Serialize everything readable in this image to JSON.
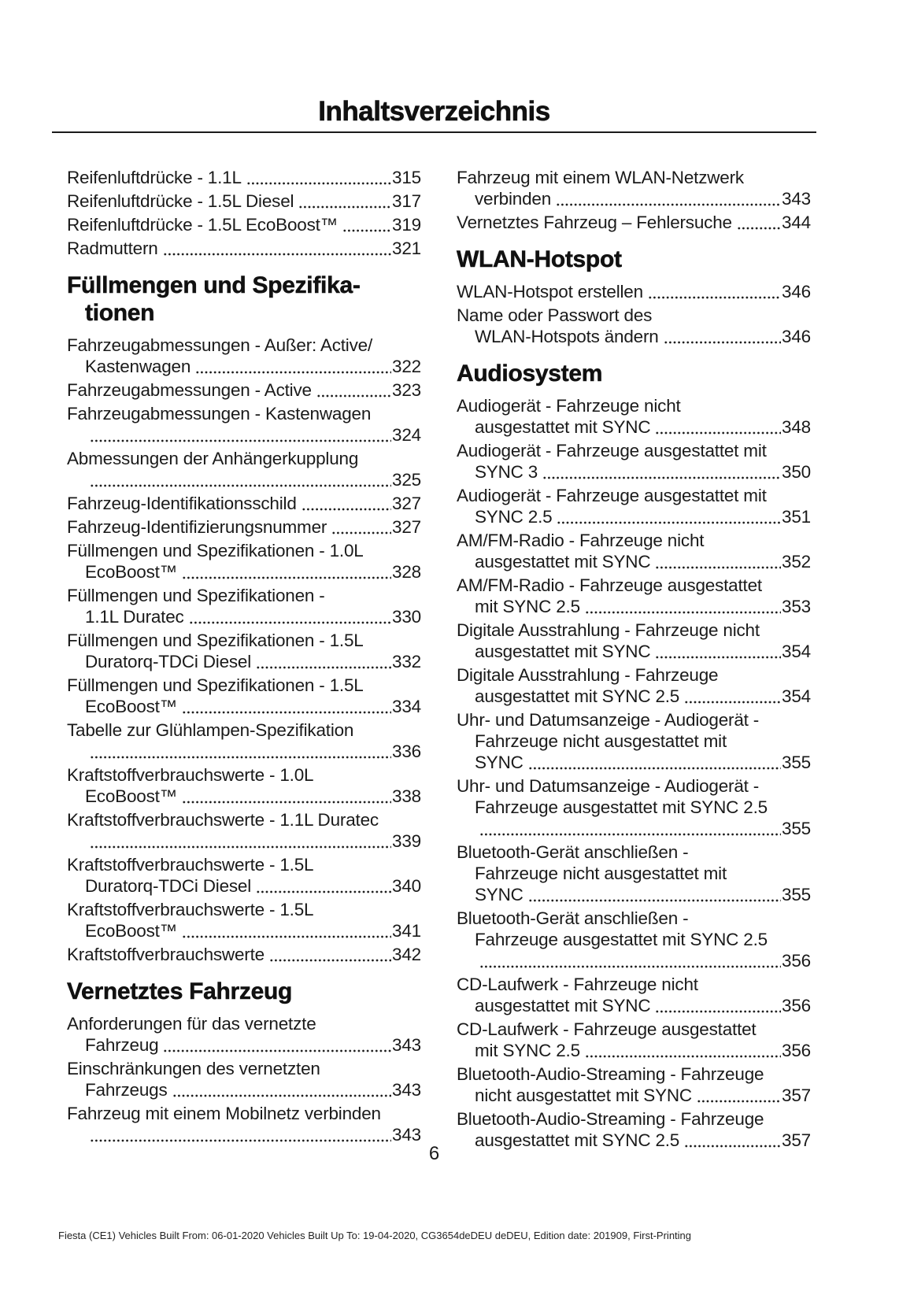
{
  "page": {
    "title": "Inhaltsverzeichnis",
    "page_number": "6",
    "footer": "Fiesta (CE1) Vehicles Built From: 06-01-2020 Vehicles Built Up To: 19-04-2020, CG3654deDEU deDEU, Edition date: 201909, First-Printing"
  },
  "colors": {
    "text": "#1a1a1a",
    "background": "#ffffff",
    "rule": "#1a1a1a"
  },
  "toc": {
    "columns": [
      {
        "name": "left",
        "items": [
          {
            "type": "entry",
            "lines": [
              "Reifenluftdrücke - 1.1L"
            ],
            "page": "315"
          },
          {
            "type": "entry",
            "lines": [
              "Reifenluftdrücke - 1.5L Diesel"
            ],
            "page": "317"
          },
          {
            "type": "entry",
            "lines": [
              "Reifenluftdrücke - 1.5L EcoBoost™"
            ],
            "page": "319"
          },
          {
            "type": "entry",
            "lines": [
              "Radmuttern"
            ],
            "page": "321"
          },
          {
            "type": "heading",
            "lines": [
              "Füllmengen und Spezifika-",
              "tionen"
            ]
          },
          {
            "type": "entry",
            "lines": [
              "Fahrzeugabmessungen - Außer: Active/",
              "Kastenwagen"
            ],
            "page": "322"
          },
          {
            "type": "entry",
            "lines": [
              "Fahrzeugabmessungen - Active"
            ],
            "page": "323"
          },
          {
            "type": "entry",
            "lines": [
              "Fahrzeugabmessungen - Kastenwagen",
              ""
            ],
            "page": "324"
          },
          {
            "type": "entry",
            "lines": [
              "Abmessungen der Anhängerkupplung",
              ""
            ],
            "page": "325"
          },
          {
            "type": "entry",
            "lines": [
              "Fahrzeug-Identifikationsschild"
            ],
            "page": "327"
          },
          {
            "type": "entry",
            "lines": [
              "Fahrzeug-Identifizierungsnummer"
            ],
            "page": "327"
          },
          {
            "type": "entry",
            "lines": [
              "Füllmengen und Spezifikationen - 1.0L",
              "EcoBoost™"
            ],
            "page": "328"
          },
          {
            "type": "entry",
            "lines": [
              "Füllmengen und Spezifikationen -",
              "1.1L Duratec"
            ],
            "page": "330"
          },
          {
            "type": "entry",
            "lines": [
              "Füllmengen und Spezifikationen - 1.5L",
              "Duratorq-TDCi Diesel"
            ],
            "page": "332"
          },
          {
            "type": "entry",
            "lines": [
              "Füllmengen und Spezifikationen - 1.5L",
              "EcoBoost™"
            ],
            "page": "334"
          },
          {
            "type": "entry",
            "lines": [
              "Tabelle zur Glühlampen-Spezifikation",
              ""
            ],
            "page": "336"
          },
          {
            "type": "entry",
            "lines": [
              "Kraftstoffverbrauchswerte - 1.0L",
              "EcoBoost™"
            ],
            "page": "338"
          },
          {
            "type": "entry",
            "lines": [
              "Kraftstoffverbrauchswerte - 1.1L Duratec",
              ""
            ],
            "page": "339"
          },
          {
            "type": "entry",
            "lines": [
              "Kraftstoffverbrauchswerte - 1.5L",
              "Duratorq-TDCi Diesel"
            ],
            "page": "340"
          },
          {
            "type": "entry",
            "lines": [
              "Kraftstoffverbrauchswerte - 1.5L",
              "EcoBoost™"
            ],
            "page": "341"
          },
          {
            "type": "entry",
            "lines": [
              "Kraftstoffverbrauchswerte"
            ],
            "page": "342"
          },
          {
            "type": "heading",
            "lines": [
              "Vernetztes Fahrzeug"
            ]
          },
          {
            "type": "entry",
            "lines": [
              "Anforderungen für das vernetzte",
              "Fahrzeug"
            ],
            "page": "343"
          },
          {
            "type": "entry",
            "lines": [
              "Einschränkungen des vernetzten",
              "Fahrzeugs"
            ],
            "page": "343"
          },
          {
            "type": "entry",
            "lines": [
              "Fahrzeug mit einem Mobilnetz verbinden",
              ""
            ],
            "page": "343"
          }
        ]
      },
      {
        "name": "right",
        "items": [
          {
            "type": "entry",
            "lines": [
              "Fahrzeug mit einem WLAN-Netzwerk",
              "verbinden"
            ],
            "page": "343"
          },
          {
            "type": "entry",
            "lines": [
              "Vernetztes Fahrzeug – Fehlersuche"
            ],
            "page": "344"
          },
          {
            "type": "heading",
            "lines": [
              "WLAN-Hotspot"
            ]
          },
          {
            "type": "entry",
            "lines": [
              "WLAN-Hotspot erstellen"
            ],
            "page": "346"
          },
          {
            "type": "entry",
            "lines": [
              "Name oder Passwort des",
              "WLAN-Hotspots ändern"
            ],
            "page": "346"
          },
          {
            "type": "heading",
            "lines": [
              "Audiosystem"
            ]
          },
          {
            "type": "entry",
            "lines": [
              "Audiogerät - Fahrzeuge nicht",
              "ausgestattet mit SYNC"
            ],
            "page": "348"
          },
          {
            "type": "entry",
            "lines": [
              "Audiogerät - Fahrzeuge ausgestattet mit",
              "SYNC 3"
            ],
            "page": "350"
          },
          {
            "type": "entry",
            "lines": [
              "Audiogerät - Fahrzeuge ausgestattet mit",
              "SYNC 2.5"
            ],
            "page": "351"
          },
          {
            "type": "entry",
            "lines": [
              "AM/FM-Radio - Fahrzeuge nicht",
              "ausgestattet mit SYNC"
            ],
            "page": "352"
          },
          {
            "type": "entry",
            "lines": [
              "AM/FM-Radio - Fahrzeuge ausgestattet",
              "mit SYNC 2.5"
            ],
            "page": "353"
          },
          {
            "type": "entry",
            "lines": [
              "Digitale Ausstrahlung - Fahrzeuge nicht",
              "ausgestattet mit SYNC"
            ],
            "page": "354"
          },
          {
            "type": "entry",
            "lines": [
              "Digitale Ausstrahlung - Fahrzeuge",
              "ausgestattet mit SYNC 2.5"
            ],
            "page": "354"
          },
          {
            "type": "entry",
            "lines": [
              "Uhr- und Datumsanzeige - Audiogerät -",
              "Fahrzeuge nicht ausgestattet mit",
              "SYNC"
            ],
            "page": "355"
          },
          {
            "type": "entry",
            "lines": [
              "Uhr- und Datumsanzeige - Audiogerät -",
              "Fahrzeuge ausgestattet mit SYNC 2.5",
              ""
            ],
            "page": "355"
          },
          {
            "type": "entry",
            "lines": [
              "Bluetooth-Gerät anschließen -",
              "Fahrzeuge nicht ausgestattet mit",
              "SYNC"
            ],
            "page": "355"
          },
          {
            "type": "entry",
            "lines": [
              "Bluetooth-Gerät anschließen -",
              "Fahrzeuge ausgestattet mit SYNC 2.5",
              ""
            ],
            "page": "356"
          },
          {
            "type": "entry",
            "lines": [
              "CD-Laufwerk - Fahrzeuge nicht",
              "ausgestattet mit SYNC"
            ],
            "page": "356"
          },
          {
            "type": "entry",
            "lines": [
              "CD-Laufwerk - Fahrzeuge ausgestattet",
              "mit SYNC 2.5"
            ],
            "page": "356"
          },
          {
            "type": "entry",
            "lines": [
              "Bluetooth-Audio-Streaming - Fahrzeuge",
              "nicht ausgestattet mit SYNC"
            ],
            "page": "357"
          },
          {
            "type": "entry",
            "lines": [
              "Bluetooth-Audio-Streaming - Fahrzeuge",
              "ausgestattet mit SYNC 2.5"
            ],
            "page": "357"
          }
        ]
      }
    ]
  }
}
